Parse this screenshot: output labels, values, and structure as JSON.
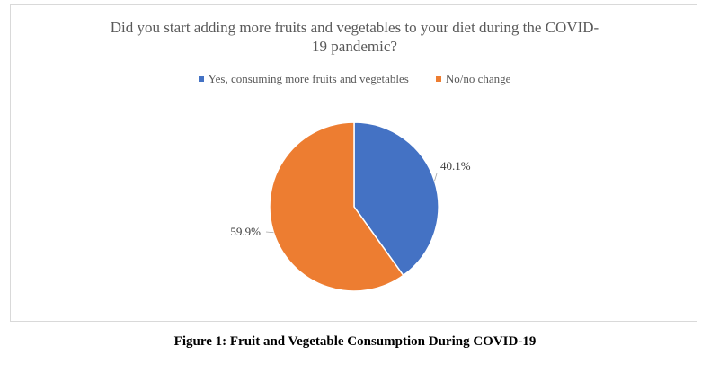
{
  "chart_data": {
    "type": "pie",
    "title": "Did you start adding more fruits and vegetables to your diet during the COVID-19 pandemic?",
    "title_lines": [
      "Did you start adding more fruits and vegetables to your diet during the COVID-",
      "19 pandemic?"
    ],
    "legend_placement": "top",
    "slices": [
      {
        "name": "Yes, consuming more fruits and vegetables",
        "value": 40.1,
        "label": "40.1%",
        "color": "#4472c4"
      },
      {
        "name": "No/no change",
        "value": 59.9,
        "label": "59.9%",
        "color": "#ed7d31"
      }
    ]
  },
  "caption": "Figure 1: Fruit and Vegetable Consumption During COVID-19"
}
